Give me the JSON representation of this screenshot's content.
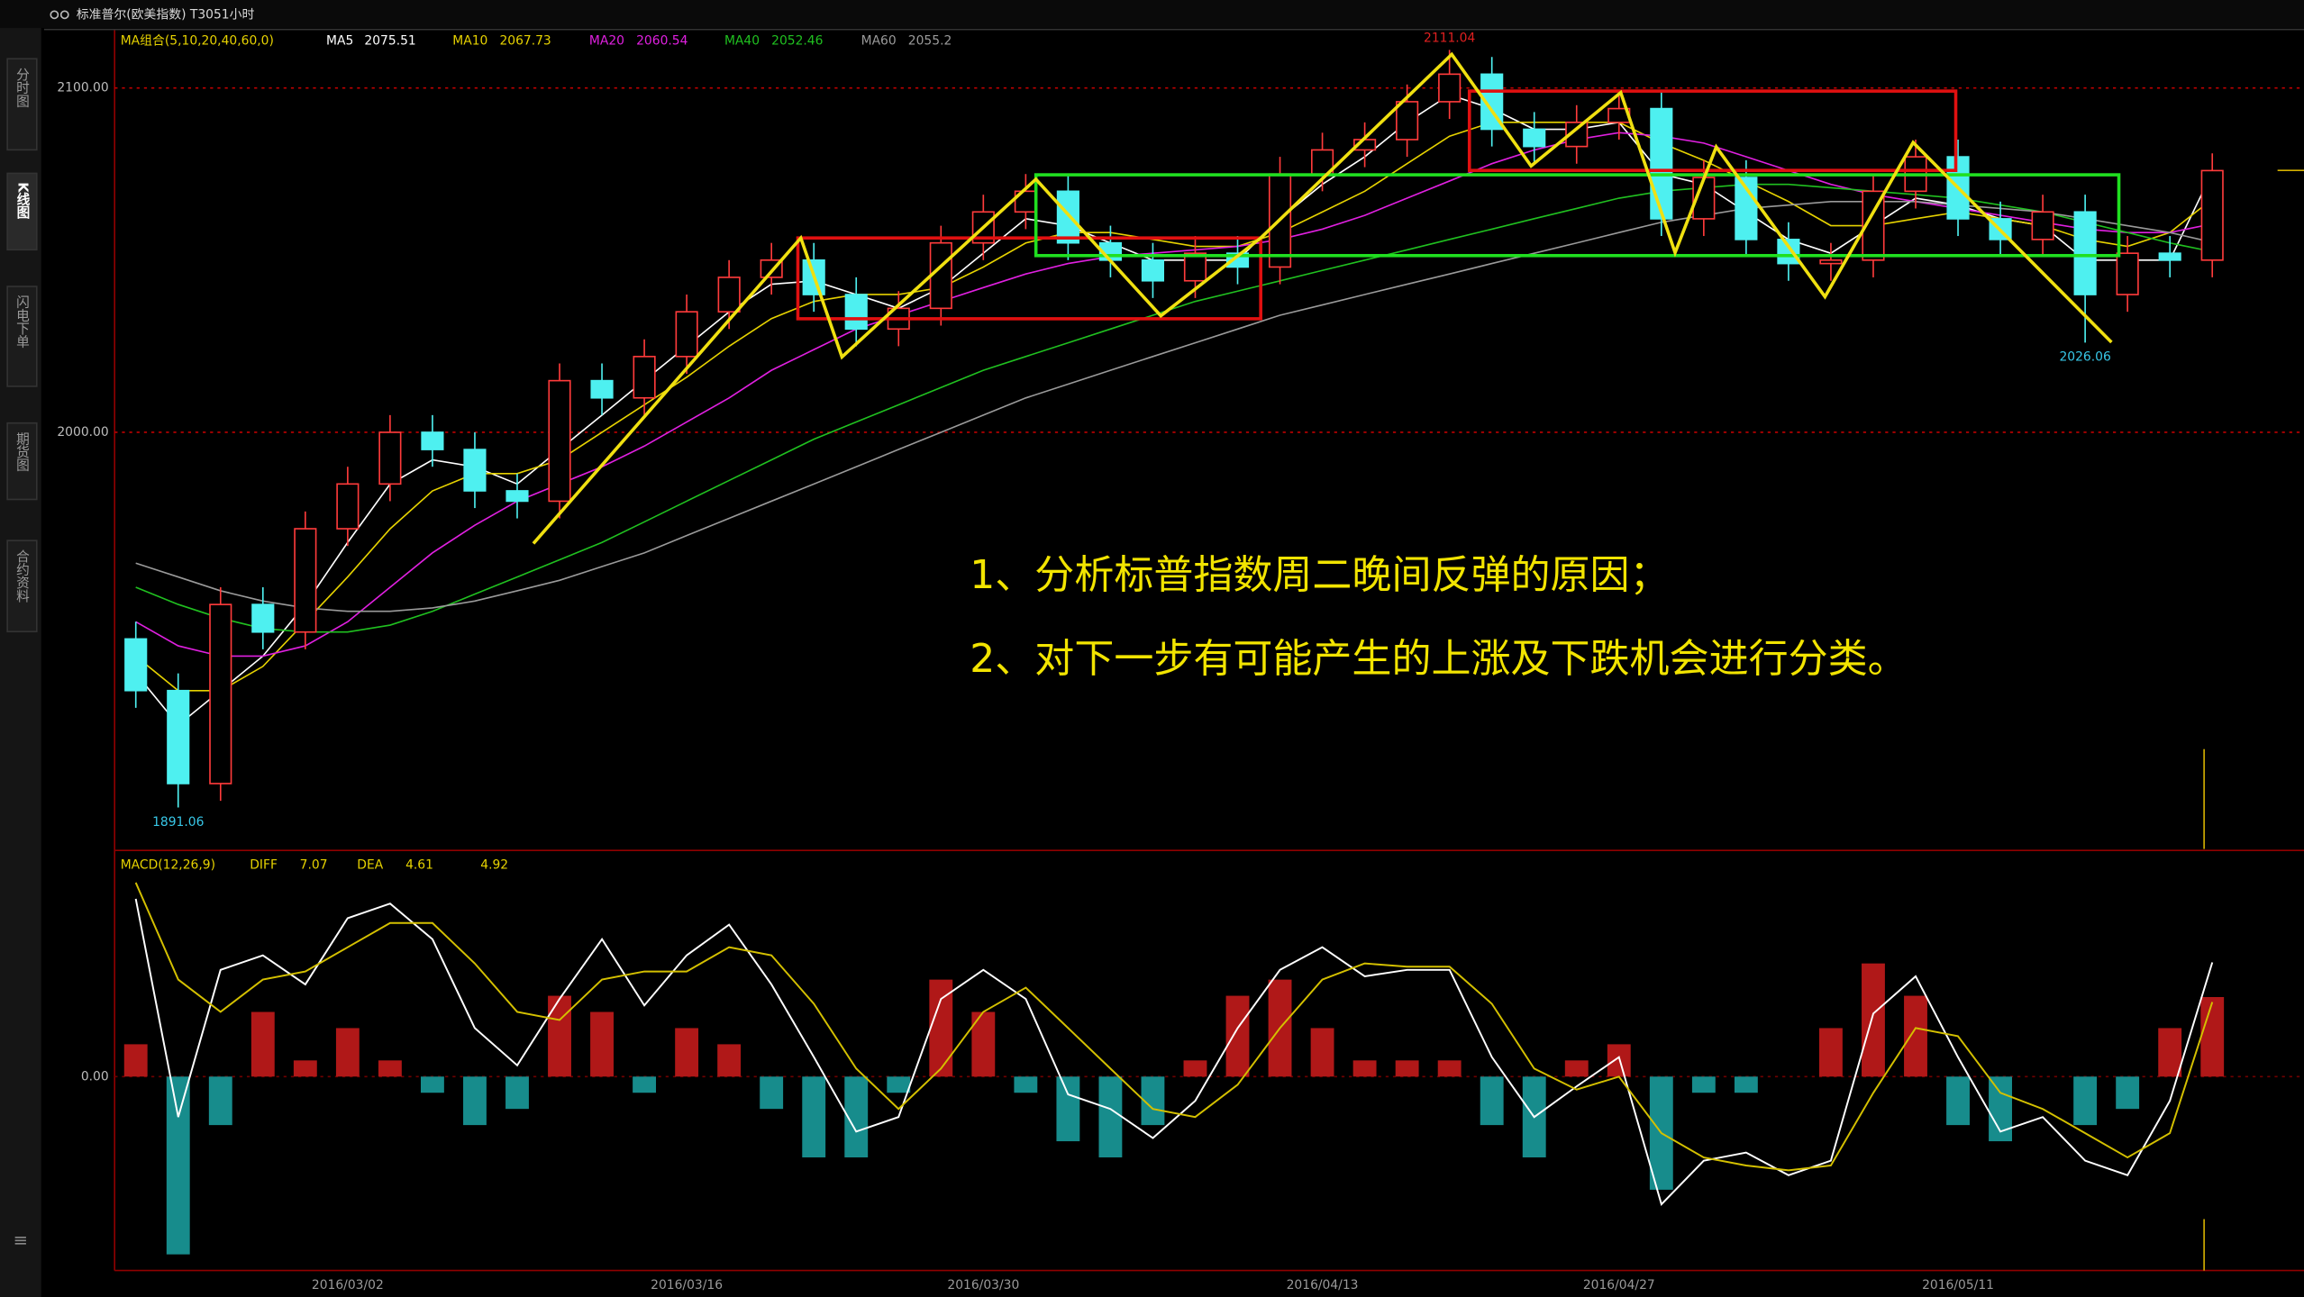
{
  "app": {
    "title": "标准普尔(欧美指数) T3051小时",
    "tabs": [
      "分时图",
      "K线图",
      "闪电下单",
      "期货图",
      "合约资料"
    ]
  },
  "chart_data": [
    {
      "type": "candlestick",
      "indicator": "MA组合(5,10,20,40,60,0)",
      "categories": [
        null,
        null,
        null,
        null,
        null,
        "2016/03/02",
        null,
        null,
        null,
        null,
        null,
        null,
        null,
        "2016/03/16",
        null,
        null,
        null,
        null,
        null,
        null,
        "2016/03/30",
        null,
        null,
        null,
        null,
        null,
        null,
        null,
        "2016/04/13",
        null,
        null,
        null,
        null,
        null,
        null,
        "2016/04/27",
        null,
        null,
        null,
        null,
        null,
        null,
        null,
        "2016/05/11",
        null,
        null,
        null,
        null,
        null,
        null
      ],
      "opens": [
        1940,
        1925,
        1898,
        1950,
        1942,
        1972,
        1985,
        2000,
        1995,
        1983,
        1980,
        2015,
        2010,
        2022,
        2035,
        2045,
        2050,
        2040,
        2030,
        2036,
        2055,
        2064,
        2070,
        2055,
        2050,
        2044,
        2052,
        2048,
        2075,
        2082,
        2085,
        2096,
        2104,
        2088,
        2083,
        2090,
        2094,
        2062,
        2074,
        2056,
        2049,
        2050,
        2070,
        2080,
        2062,
        2056,
        2064,
        2040,
        2052,
        2050
      ],
      "highs": [
        1945,
        1930,
        1955,
        1955,
        1977,
        1990,
        2005,
        2005,
        2000,
        1988,
        2020,
        2020,
        2027,
        2040,
        2050,
        2055,
        2055,
        2045,
        2041,
        2060,
        2069,
        2075,
        2075,
        2060,
        2055,
        2057,
        2057,
        2080,
        2087,
        2090,
        2101,
        2111.04,
        2109,
        2093,
        2095,
        2099,
        2099,
        2079,
        2079,
        2061,
        2055,
        2075,
        2085,
        2085,
        2067,
        2069,
        2069,
        2057,
        2057,
        2081
      ],
      "lows": [
        1920,
        1891.06,
        1893,
        1937,
        1937,
        1967,
        1980,
        1990,
        1978,
        1975,
        1975,
        2005,
        2005,
        2017,
        2030,
        2040,
        2035,
        2025,
        2025,
        2031,
        2050,
        2059,
        2050,
        2045,
        2039,
        2039,
        2043,
        2043,
        2070,
        2077,
        2080,
        2091,
        2083,
        2078,
        2078,
        2085,
        2057,
        2057,
        2051,
        2044,
        2044,
        2045,
        2065,
        2057,
        2051,
        2051,
        2026.06,
        2035,
        2045,
        2045
      ],
      "closes": [
        1925,
        1898,
        1950,
        1942,
        1972,
        1985,
        2000,
        1995,
        1983,
        1980,
        2015,
        2010,
        2022,
        2035,
        2045,
        2050,
        2040,
        2030,
        2036,
        2055,
        2064,
        2070,
        2055,
        2050,
        2044,
        2052,
        2048,
        2075,
        2082,
        2085,
        2096,
        2104,
        2088,
        2083,
        2090,
        2094,
        2062,
        2074,
        2056,
        2049,
        2050,
        2070,
        2080,
        2062,
        2056,
        2064,
        2040,
        2052,
        2050,
        2076
      ],
      "up_color": "#ff3b3b",
      "down_color": "#4ef0f0",
      "ylim": [
        1879,
        2117
      ],
      "yticks": [
        {
          "value": 2000,
          "label": "2000.00"
        },
        {
          "value": 2100,
          "label": "2100.00"
        }
      ],
      "grid": true,
      "grid_color": "#c00000",
      "ma": [
        {
          "name": "MA5",
          "color": "#ffffff",
          "values": [
            1930,
            1915,
            1925,
            1935,
            1950,
            1968,
            1985,
            1992,
            1990,
            1985,
            1995,
            2005,
            2015,
            2025,
            2035,
            2043,
            2044,
            2040,
            2036,
            2042,
            2052,
            2062,
            2060,
            2055,
            2050,
            2050,
            2050,
            2062,
            2072,
            2080,
            2090,
            2098,
            2094,
            2088,
            2088,
            2090,
            2075,
            2072,
            2064,
            2056,
            2052,
            2060,
            2068,
            2066,
            2062,
            2060,
            2050,
            2050,
            2050,
            2075.51
          ]
        },
        {
          "name": "MA10",
          "color": "#e6d200",
          "values": [
            1935,
            1925,
            1925,
            1932,
            1945,
            1958,
            1972,
            1983,
            1988,
            1988,
            1992,
            2000,
            2008,
            2016,
            2025,
            2033,
            2038,
            2040,
            2040,
            2042,
            2048,
            2055,
            2058,
            2058,
            2056,
            2054,
            2054,
            2058,
            2064,
            2070,
            2078,
            2086,
            2090,
            2090,
            2090,
            2090,
            2084,
            2079,
            2073,
            2067,
            2060,
            2060,
            2062,
            2064,
            2062,
            2060,
            2056,
            2054,
            2058,
            2067.73
          ]
        },
        {
          "name": "MA20",
          "color": "#e020e0",
          "values": [
            1945,
            1938,
            1935,
            1935,
            1938,
            1945,
            1955,
            1965,
            1973,
            1980,
            1985,
            1990,
            1996,
            2003,
            2010,
            2018,
            2024,
            2030,
            2034,
            2038,
            2042,
            2046,
            2049,
            2051,
            2052,
            2053,
            2054,
            2056,
            2059,
            2063,
            2068,
            2073,
            2078,
            2082,
            2085,
            2087,
            2086,
            2084,
            2080,
            2076,
            2072,
            2069,
            2067,
            2065,
            2063,
            2061,
            2059,
            2058,
            2058,
            2060.54
          ]
        },
        {
          "name": "MA40",
          "color": "#20c020",
          "values": [
            1955,
            1950,
            1946,
            1943,
            1942,
            1942,
            1944,
            1948,
            1953,
            1958,
            1963,
            1968,
            1974,
            1980,
            1986,
            1992,
            1998,
            2003,
            2008,
            2013,
            2018,
            2022,
            2026,
            2030,
            2034,
            2038,
            2041,
            2044,
            2047,
            2050,
            2053,
            2056,
            2059,
            2062,
            2065,
            2068,
            2070,
            2071,
            2072,
            2072,
            2071,
            2070,
            2069,
            2068,
            2066,
            2064,
            2061,
            2058,
            2055,
            2052.46
          ]
        },
        {
          "name": "MA60",
          "color": "#9a9a9a",
          "values": [
            1962,
            1958,
            1954,
            1951,
            1949,
            1948,
            1948,
            1949,
            1951,
            1954,
            1957,
            1961,
            1965,
            1970,
            1975,
            1980,
            1985,
            1990,
            1995,
            2000,
            2005,
            2010,
            2014,
            2018,
            2022,
            2026,
            2030,
            2034,
            2037,
            2040,
            2043,
            2046,
            2049,
            2052,
            2055,
            2058,
            2061,
            2063,
            2065,
            2066,
            2067,
            2067,
            2067,
            2066,
            2065,
            2064,
            2062,
            2060,
            2058,
            2055.2
          ]
        }
      ],
      "annotations": [
        "1、分析标普指数周二晚间反弹的原因；",
        "2、对下一步有可能产生的上涨及下跌机会进行分类。"
      ]
    },
    {
      "type": "macd",
      "title": "MACD(12,26,9)",
      "ylim": [
        -12,
        13.9
      ],
      "yticks": [
        {
          "value": 0,
          "label": "0.00"
        }
      ],
      "series": [
        {
          "name": "DIFF",
          "color": "#ffffff",
          "values": [
            11,
            -2.5,
            6.6,
            7.5,
            5.7,
            9.8,
            10.7,
            8.5,
            3,
            0.7,
            4.8,
            8.5,
            4.4,
            7.5,
            9.4,
            5.7,
            1.2,
            -3.4,
            -2.5,
            4.8,
            6.6,
            4.8,
            -1.1,
            -2,
            -3.8,
            -1.5,
            3,
            6.6,
            8,
            6.2,
            6.6,
            6.6,
            1.2,
            -2.5,
            -0.6,
            1.2,
            -7.9,
            -5.2,
            -4.7,
            -6.1,
            -5.2,
            3.9,
            6.2,
            1.2,
            -3.4,
            -2.5,
            -5.2,
            -6.1,
            -1.5,
            7.07
          ]
        },
        {
          "name": "DEA",
          "color": "#d4c000",
          "values": [
            12,
            6,
            4,
            6,
            6.5,
            8,
            9.5,
            9.5,
            7,
            4,
            3.5,
            6,
            6.5,
            6.5,
            8,
            7.5,
            4.5,
            0.5,
            -2,
            0.5,
            4,
            5.5,
            3,
            0.5,
            -2,
            -2.5,
            -0.5,
            3,
            6,
            7,
            6.8,
            6.8,
            4.5,
            0.5,
            -0.8,
            0,
            -3.5,
            -5,
            -5.5,
            -5.8,
            -5.5,
            -1,
            3,
            2.5,
            -1,
            -2,
            -3.5,
            -5,
            -3.5,
            4.61
          ]
        }
      ],
      "histogram": {
        "up_color": "#b01818",
        "down_color": "#178c8c",
        "values": [
          2,
          -11,
          -3,
          4,
          1,
          3,
          1,
          -1,
          -3,
          -2,
          5,
          4,
          -1,
          3,
          2,
          -2,
          -5,
          -5,
          -1,
          6,
          4,
          -1,
          -4,
          -5,
          -3,
          1,
          5,
          6,
          3,
          1,
          1,
          1,
          -3,
          -5,
          1,
          2,
          -7,
          -1,
          -1,
          0,
          3,
          7,
          5,
          -3,
          -4,
          0,
          -3,
          -2,
          3,
          4.92
        ]
      }
    }
  ]
}
